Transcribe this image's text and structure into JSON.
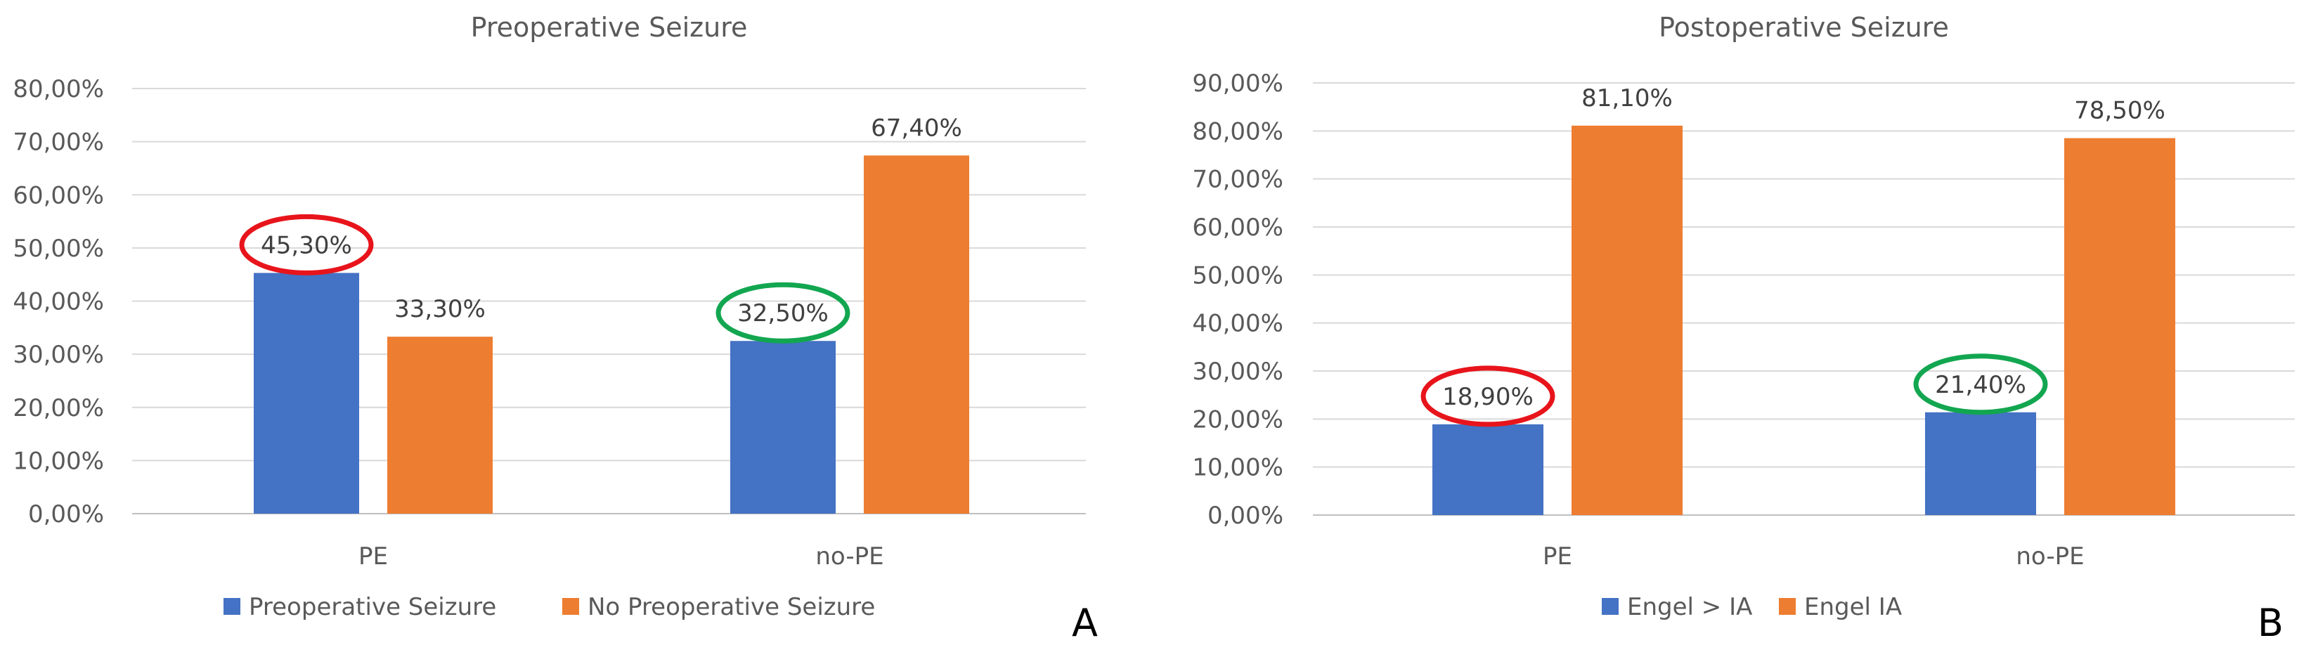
{
  "chart_data": [
    {
      "type": "bar",
      "panel_label": "A",
      "title": "Preoperative Seizure",
      "xlabel": "",
      "ylabel": "",
      "categories": [
        "PE",
        "no-PE"
      ],
      "series": [
        {
          "name": "Preoperative Seizure",
          "color": "#4472C4",
          "values": [
            45.3,
            32.5
          ],
          "labels": [
            "45,30%",
            "32,50%"
          ]
        },
        {
          "name": "No Preoperative Seizure",
          "color": "#ED7D31",
          "values": [
            33.3,
            67.4
          ],
          "labels": [
            "33,30%",
            "67,40%"
          ]
        }
      ],
      "ylim": [
        0,
        80
      ],
      "yticks": [
        0,
        10,
        20,
        30,
        40,
        50,
        60,
        70,
        80
      ],
      "ytick_labels": [
        "0,00%",
        "10,00%",
        "20,00%",
        "30,00%",
        "40,00%",
        "50,00%",
        "60,00%",
        "70,00%",
        "80,00%"
      ],
      "grid": true,
      "legend": "bottom",
      "highlights": [
        {
          "series": 0,
          "category": 0,
          "color": "#E8141B"
        },
        {
          "series": 0,
          "category": 1,
          "color": "#12A650"
        }
      ]
    },
    {
      "type": "bar",
      "panel_label": "B",
      "title": "Postoperative Seizure",
      "xlabel": "",
      "ylabel": "",
      "categories": [
        "PE",
        "no-PE"
      ],
      "series": [
        {
          "name": "Engel > IA",
          "color": "#4472C4",
          "values": [
            18.9,
            21.4
          ],
          "labels": [
            "18,90%",
            "21,40%"
          ]
        },
        {
          "name": "Engel IA",
          "color": "#ED7D31",
          "values": [
            81.1,
            78.5
          ],
          "labels": [
            "81,10%",
            "78,50%"
          ]
        }
      ],
      "ylim": [
        0,
        90
      ],
      "yticks": [
        0,
        10,
        20,
        30,
        40,
        50,
        60,
        70,
        80,
        90
      ],
      "ytick_labels": [
        "0,00%",
        "10,00%",
        "20,00%",
        "30,00%",
        "40,00%",
        "50,00%",
        "60,00%",
        "70,00%",
        "80,00%",
        "90,00%"
      ],
      "grid": true,
      "legend": "bottom",
      "highlights": [
        {
          "series": 0,
          "category": 0,
          "color": "#E8141B"
        },
        {
          "series": 0,
          "category": 1,
          "color": "#12A650"
        }
      ]
    }
  ]
}
